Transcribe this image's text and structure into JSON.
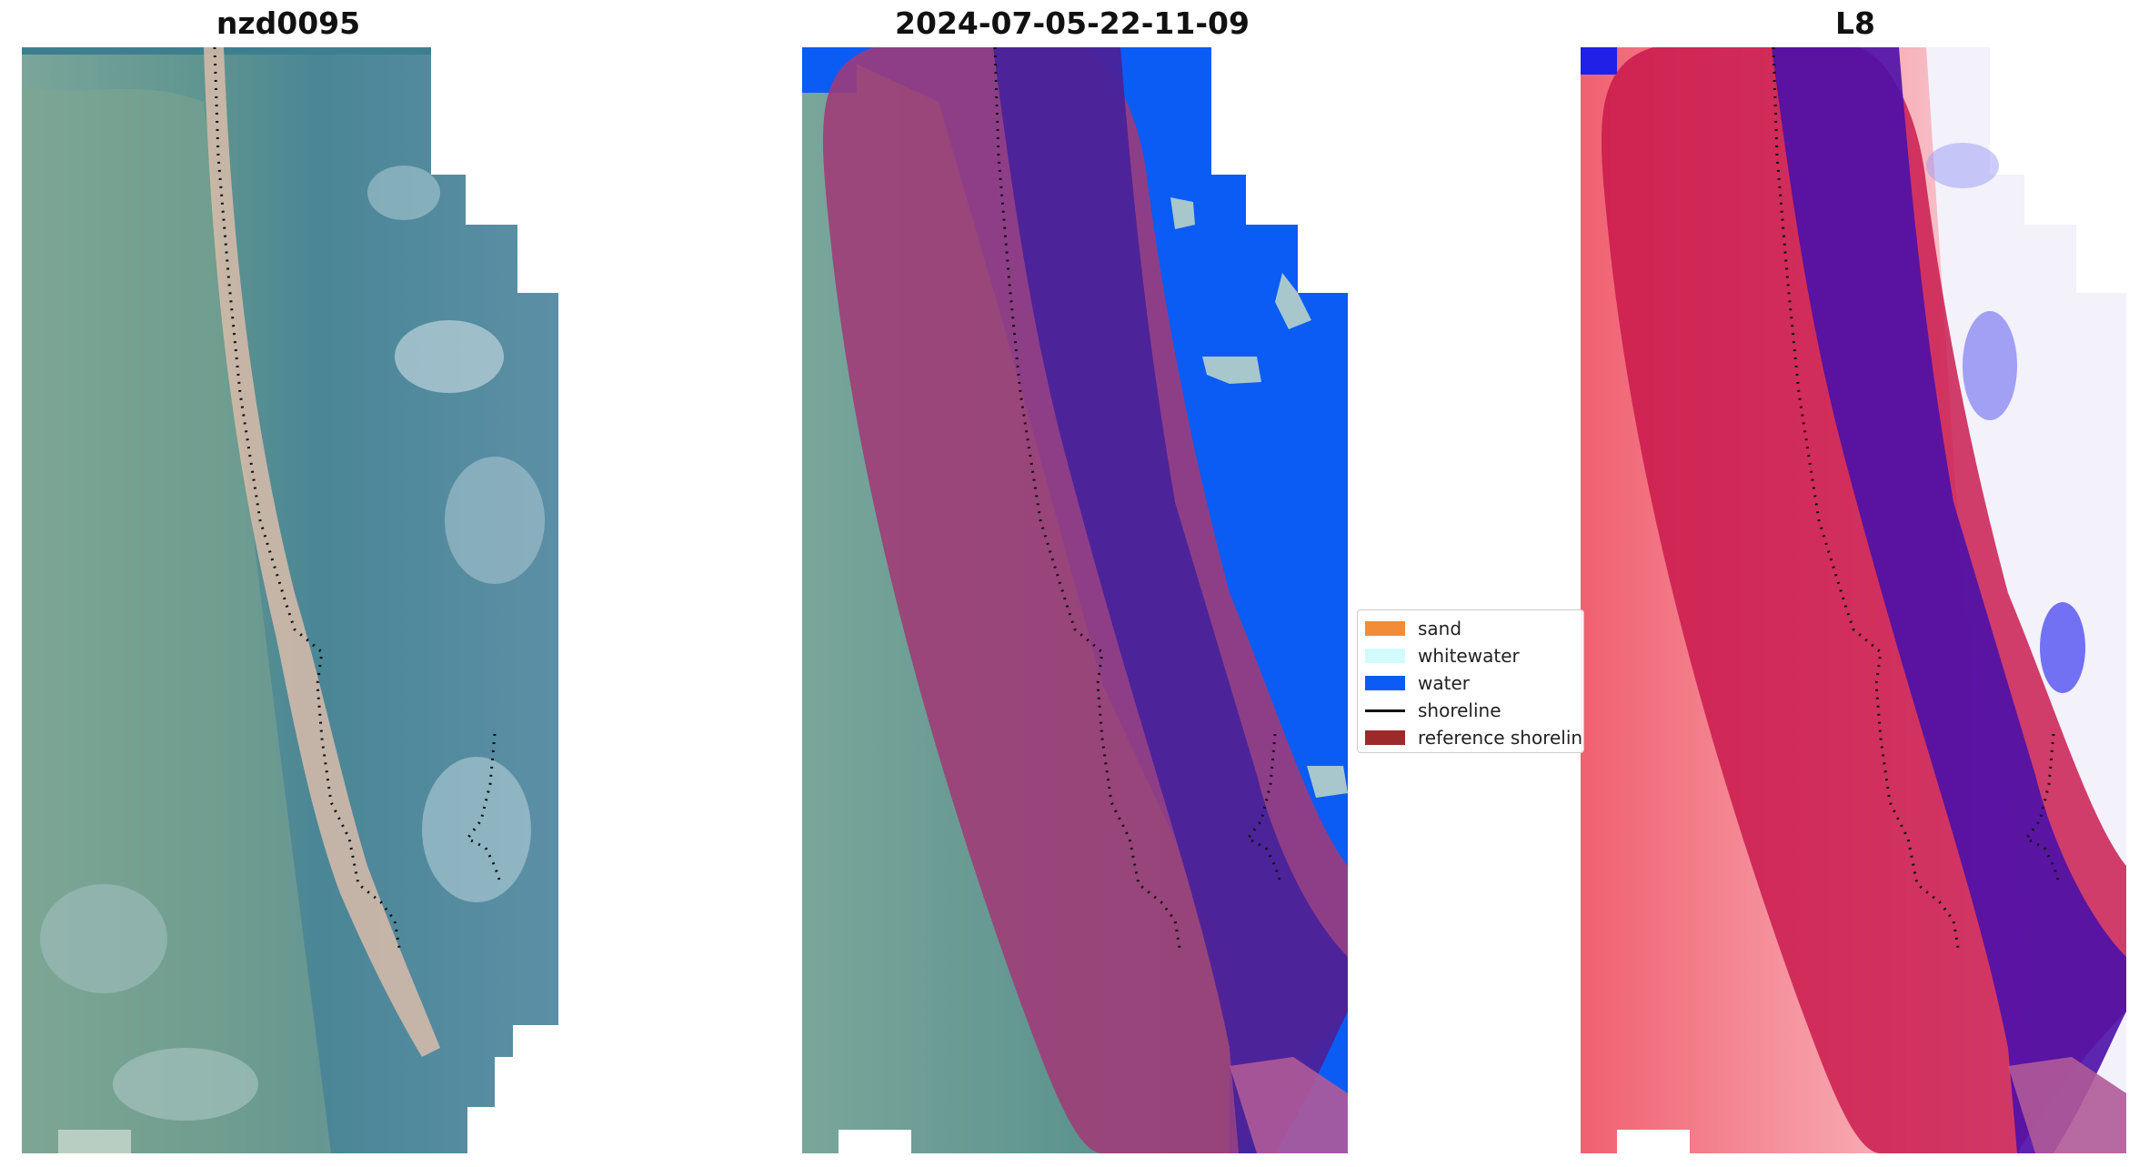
{
  "panels": [
    {
      "title": "nzd0095",
      "kind": "rgb"
    },
    {
      "title": "2024-07-05-22-11-09",
      "kind": "classified"
    },
    {
      "title": "L8",
      "kind": "index"
    }
  ],
  "legend": {
    "items": [
      {
        "label": "sand",
        "color": "#f28c36",
        "type": "patch"
      },
      {
        "label": "whitewater",
        "color": "#d2fbff",
        "type": "patch"
      },
      {
        "label": "water",
        "color": "#0b5cf5",
        "type": "patch"
      },
      {
        "label": "shoreline",
        "color": "#111111",
        "type": "line"
      },
      {
        "label": "reference shoreline",
        "color": "#9c2a2a",
        "type": "patch"
      }
    ]
  },
  "colors": {
    "rgb_base": "#4a8696",
    "rgb_land": "#6f9a8a",
    "rgb_beach": "#d4b8a6",
    "buffer": "#a03a78",
    "sea_in_buffer": "#4a229a",
    "water": "#0b5cf5",
    "index_land": "#ef4f5e",
    "index_buffer": "#c8154a",
    "index_sea_buffer": "#4c10a8",
    "index_sea": "#f4f4fb",
    "shoreline": "#111111"
  }
}
